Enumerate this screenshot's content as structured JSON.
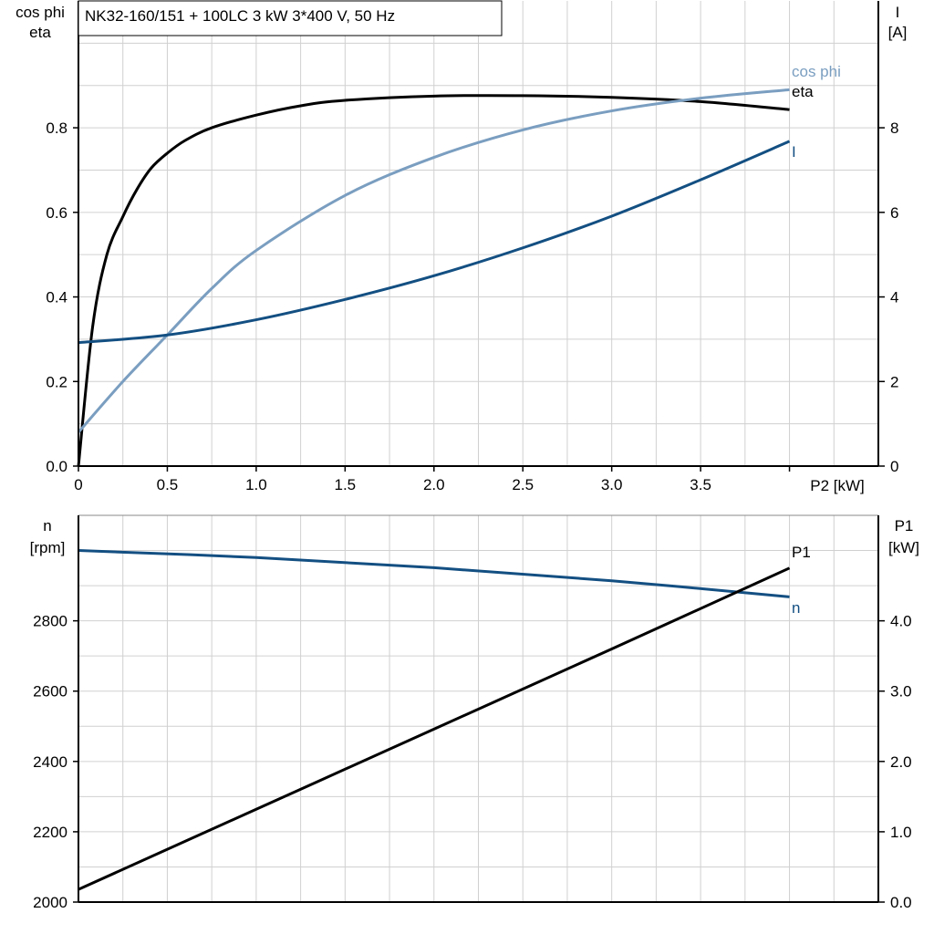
{
  "title": "NK32-160/151 + 100LC   3 kW   3*400 V, 50 Hz",
  "colors": {
    "eta": "#000000",
    "cos_phi": "#7a9ec0",
    "I": "#134f82",
    "n": "#134f82",
    "P1": "#000000",
    "grid": "#d0d0d0"
  },
  "chart_data": [
    {
      "type": "line",
      "xlabel": "P2 [kW]",
      "xlim": [
        0,
        4.5
      ],
      "xticks": [
        "0",
        "0.5",
        "1.0",
        "1.5",
        "2.0",
        "2.5",
        "3.0",
        "3.5"
      ],
      "xtick_values": [
        0,
        0.5,
        1.0,
        1.5,
        2.0,
        2.5,
        3.0,
        3.5
      ],
      "ylabel_left": [
        "cos phi",
        "eta"
      ],
      "ylim_left": [
        0,
        1.1
      ],
      "yticks_left": [
        "0.0",
        "0.2",
        "0.4",
        "0.6",
        "0.8"
      ],
      "ytick_values_left": [
        0,
        0.2,
        0.4,
        0.6,
        0.8
      ],
      "ylabel_right": [
        "I",
        "[A]"
      ],
      "ylim_right": [
        0,
        11
      ],
      "yticks_right": [
        "0",
        "2",
        "4",
        "6",
        "8"
      ],
      "ytick_values_right": [
        0,
        2,
        4,
        6,
        8
      ],
      "grid": true,
      "series": [
        {
          "name": "eta",
          "axis": "left",
          "x": [
            0,
            0.08,
            0.16,
            0.25,
            0.33,
            0.41,
            0.5,
            0.6,
            0.75,
            1.0,
            1.25,
            1.5,
            2.0,
            2.5,
            3.0,
            3.5,
            4.0
          ],
          "y": [
            0,
            0.33,
            0.5,
            0.59,
            0.655,
            0.705,
            0.74,
            0.77,
            0.8,
            0.83,
            0.852,
            0.865,
            0.875,
            0.876,
            0.872,
            0.862,
            0.843
          ]
        },
        {
          "name": "cos phi",
          "axis": "left",
          "x": [
            0,
            0.25,
            0.5,
            0.75,
            1.0,
            1.5,
            2.0,
            2.5,
            3.0,
            3.5,
            4.0
          ],
          "y": [
            0.08,
            0.2,
            0.31,
            0.42,
            0.51,
            0.64,
            0.73,
            0.795,
            0.84,
            0.87,
            0.89
          ]
        },
        {
          "name": "I",
          "axis": "right",
          "x": [
            0,
            0.5,
            1.0,
            1.5,
            2.0,
            2.5,
            3.0,
            3.5,
            4.0
          ],
          "y": [
            2.92,
            3.1,
            3.46,
            3.94,
            4.5,
            5.16,
            5.91,
            6.77,
            7.68
          ]
        }
      ]
    },
    {
      "type": "line",
      "xlim": [
        0,
        4.5
      ],
      "ylabel_left": [
        "n",
        "[rpm]"
      ],
      "ylim_left": [
        2000,
        3100
      ],
      "yticks_left": [
        "2000",
        "2200",
        "2400",
        "2600",
        "2800"
      ],
      "ytick_values_left": [
        2000,
        2200,
        2400,
        2600,
        2800
      ],
      "ylabel_right": [
        "P1",
        "[kW]"
      ],
      "ylim_right": [
        0,
        5.5
      ],
      "yticks_right": [
        "0.0",
        "1.0",
        "2.0",
        "3.0",
        "4.0"
      ],
      "ytick_values_right": [
        0,
        1,
        2,
        3,
        4
      ],
      "grid": true,
      "series": [
        {
          "name": "n",
          "axis": "left",
          "x": [
            0,
            1.0,
            2.0,
            3.0,
            4.0
          ],
          "y": [
            3000,
            2980,
            2951,
            2914,
            2868
          ]
        },
        {
          "name": "P1",
          "axis": "right",
          "x": [
            0,
            1.0,
            2.0,
            3.0,
            4.0
          ],
          "y": [
            0.18,
            1.32,
            2.46,
            3.6,
            4.75
          ]
        }
      ]
    }
  ]
}
